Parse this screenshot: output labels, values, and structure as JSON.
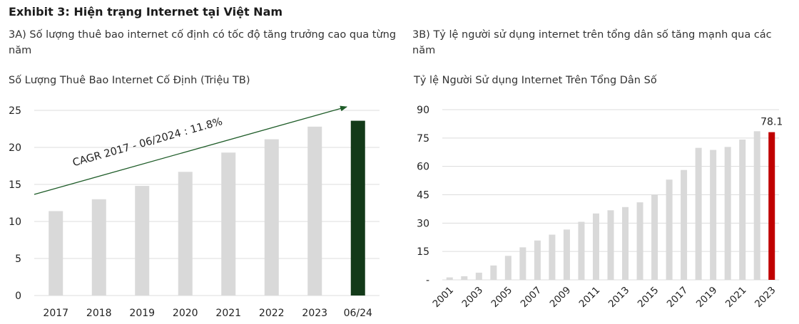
{
  "exhibit_title": "Exhibit 3: Hiện trạng Internet tại Việt Nam",
  "left": {
    "subtitle": "3A) Số lượng thuê bao internet cố định có tốc độ tăng trưởng cao qua từng năm",
    "chart_title": "Số Lượng Thuê Bao Internet Cố Định (Triệu TB)"
  },
  "right": {
    "subtitle": "3B) Tỷ lệ người sử dụng internet trên tổng dân số tăng mạnh qua các năm",
    "chart_title": "Tỷ lệ Người Sử dụng Internet Trên Tổng Dân Số"
  },
  "chart_data": [
    {
      "type": "bar",
      "title": "Số Lượng Thuê Bao Internet Cố Định (Triệu TB)",
      "xlabel": "",
      "ylabel": "",
      "categories": [
        "2017",
        "2018",
        "2019",
        "2020",
        "2021",
        "2022",
        "2023",
        "06/24"
      ],
      "values": [
        11.4,
        13.0,
        14.8,
        16.7,
        19.3,
        21.1,
        22.8,
        23.6
      ],
      "ylim": [
        0,
        25
      ],
      "yticks": [
        "0",
        "5",
        "10",
        "15",
        "20",
        "25"
      ],
      "grid": true,
      "bar_color": "#d9d9d9",
      "highlight_color": "#133a19",
      "highlight_index": 7,
      "annotation": "CAGR 2017 - 06/2024 : 11.8%",
      "arrow_color": "#1e5c28"
    },
    {
      "type": "bar",
      "title": "Tỷ lệ Người Sử dụng Internet Trên Tổng Dân Số",
      "xlabel": "",
      "ylabel": "",
      "categories": [
        "2001",
        "2002",
        "2003",
        "2004",
        "2005",
        "2006",
        "2007",
        "2008",
        "2009",
        "2010",
        "2011",
        "2012",
        "2013",
        "2014",
        "2015",
        "2016",
        "2017",
        "2018",
        "2019",
        "2020",
        "2021",
        "2022",
        "2023"
      ],
      "tick_labels": [
        "2001",
        "2003",
        "2005",
        "2007",
        "2009",
        "2011",
        "2013",
        "2015",
        "2017",
        "2019",
        "2021",
        "2023"
      ],
      "values": [
        1.3,
        1.9,
        3.8,
        7.6,
        12.7,
        17.2,
        20.8,
        23.9,
        26.6,
        30.7,
        35.1,
        36.8,
        38.5,
        41.0,
        45.0,
        53.0,
        58.1,
        69.8,
        68.7,
        70.3,
        74.2,
        78.6,
        78.1
      ],
      "data_label": "78.1",
      "ylim": [
        0,
        90
      ],
      "yticks": [
        "-",
        "15",
        "30",
        "45",
        "60",
        "75",
        "90"
      ],
      "grid": true,
      "bar_color": "#d9d9d9",
      "highlight_color": "#c00000",
      "highlight_index": 22
    }
  ]
}
